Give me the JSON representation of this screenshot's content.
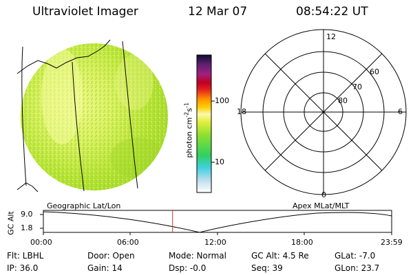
{
  "header": {
    "title": "Ultraviolet Imager",
    "date": "12 Mar 07",
    "time": "08:54:22 UT"
  },
  "colorbar": {
    "label": "photon cm",
    "label_sup1": "-2",
    "label_mid": "s",
    "label_sup2": "-1",
    "tick_100": "100",
    "tick_10": "10"
  },
  "polar_plot": {
    "mlt_top": "12",
    "mlt_left": "18",
    "mlt_right": "6",
    "mlt_bottom": "0",
    "lat_60": "60",
    "lat_70": "70",
    "lat_80": "80"
  },
  "timeline": {
    "left_label": "Geographic Lat/Lon",
    "right_label": "Apex MLat/MLT",
    "y_axis_label": "GC Alt",
    "y_top": "9.0",
    "y_bottom": "1.8",
    "x_ticks": [
      "00:00",
      "06:00",
      "12:00",
      "18:00",
      "23:59"
    ],
    "marker_time": "08:54",
    "marker_fraction": 0.371
  },
  "info": {
    "flt": "Flt: LBHL",
    "ip": "IP: 36.0",
    "door": "Door: Open",
    "gain": "Gain: 14",
    "mode": "Mode: Normal",
    "dsp": "Dsp:   -0.0",
    "gcalt": "GC Alt: 4.5 Re",
    "seq": "Seq: 39",
    "glat": "GLat:   -7.0",
    "glon": "GLon:  23.7"
  },
  "colors": {
    "disk_base": "#b4e632",
    "disk_light": "#e6f578",
    "marker": "#cc3333"
  }
}
